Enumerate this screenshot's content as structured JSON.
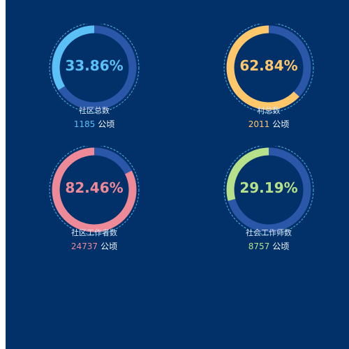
{
  "colors": {
    "background": "#02316a",
    "track": "#2a57a8",
    "dashed_ring": "#4fb3e0"
  },
  "chart_data": [
    {
      "type": "pie",
      "percent_text": "33.86%",
      "value": 33.86,
      "label": "社区总数",
      "count": "1185",
      "unit": "公顷",
      "color": "#5bc0f6"
    },
    {
      "type": "pie",
      "percent_text": "62.84%",
      "value": 62.84,
      "label": "村总数",
      "count": "2011",
      "unit": "公顷",
      "color": "#ffc76a"
    },
    {
      "type": "pie",
      "percent_text": "82.46%",
      "value": 82.46,
      "label": "社区工作者数",
      "count": "24737",
      "unit": "公顷",
      "color": "#ee8a97"
    },
    {
      "type": "pie",
      "percent_text": "29.19%",
      "value": 29.19,
      "label": "社会工作师数",
      "count": "8757",
      "unit": "公顷",
      "color": "#b6e08a"
    }
  ]
}
